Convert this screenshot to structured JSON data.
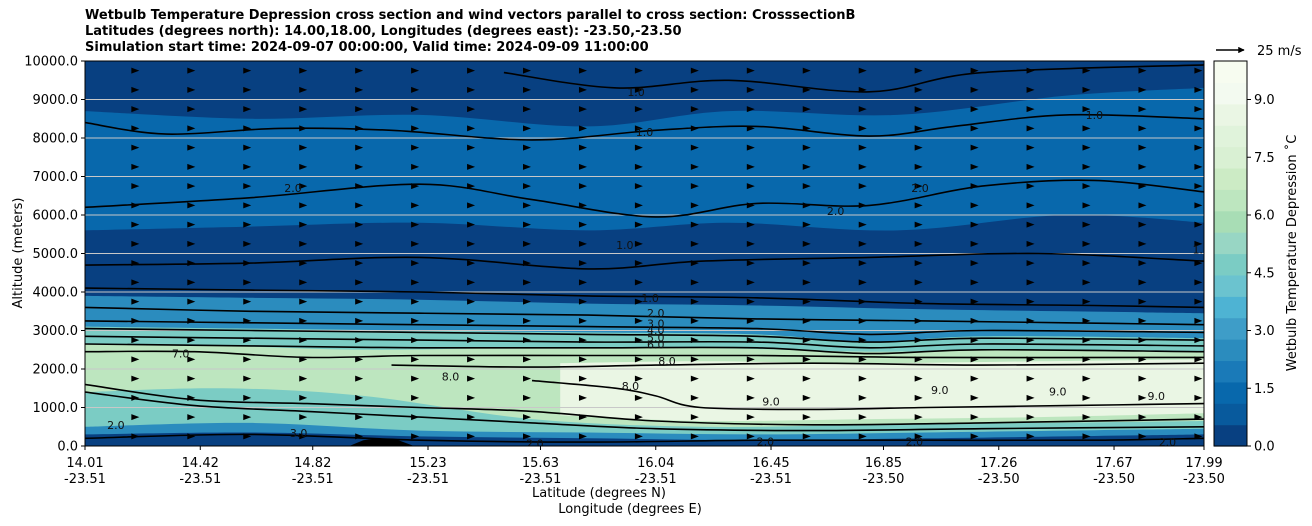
{
  "chart_data": {
    "type": "contourf",
    "title_lines": [
      "Wetbulb Temperature Depression cross section and wind vectors parallel to cross section: CrosssectionB",
      "Latitudes (degrees north): 14.00,18.00, Longitudes (degrees east): -23.50,-23.50",
      "Simulation start time: 2024-09-07 00:00:00, Valid time: 2024-09-09 11:00:00"
    ],
    "ylabel": "Altitude (meters)",
    "xlabel_lat": "Latitude (degrees N)",
    "xlabel_lon": "Longitude (degrees E)",
    "ylim": [
      0,
      10000
    ],
    "yticks": [
      "0.0",
      "1000.0",
      "2000.0",
      "3000.0",
      "4000.0",
      "5000.0",
      "6000.0",
      "7000.0",
      "8000.0",
      "9000.0",
      "10000.0"
    ],
    "ytick_values": [
      0,
      1000,
      2000,
      3000,
      4000,
      5000,
      6000,
      7000,
      8000,
      9000,
      10000
    ],
    "xticks_lat": [
      "14.01",
      "14.42",
      "14.82",
      "15.23",
      "15.63",
      "16.04",
      "16.45",
      "16.85",
      "17.26",
      "17.67",
      "17.99"
    ],
    "xticks_lon": [
      "-23.51",
      "-23.51",
      "-23.51",
      "-23.51",
      "-23.51",
      "-23.51",
      "-23.51",
      "-23.50",
      "-23.50",
      "-23.50",
      "-23.50"
    ],
    "xtick_lat_values": [
      14.01,
      14.42,
      14.82,
      15.23,
      15.63,
      16.04,
      16.45,
      16.85,
      17.26,
      17.67,
      17.99
    ],
    "xlim_lat": [
      14.01,
      17.99
    ],
    "grid": "horizontal",
    "colorbar": {
      "label": "Wetbulb Temperature Depression $^\\circ$C",
      "label_text": "Wetbulb Temperature Depression ˚C",
      "range": [
        0,
        10
      ],
      "ticks": [
        "0.0",
        "1.5",
        "3.0",
        "4.5",
        "6.0",
        "7.5",
        "9.0"
      ],
      "tick_values": [
        0,
        1.5,
        3.0,
        4.5,
        6.0,
        7.5,
        9.0
      ],
      "colors": [
        "#084081",
        "#085a9d",
        "#0868ac",
        "#1a7ab8",
        "#2b8cbe",
        "#3e9dc8",
        "#4eb3d3",
        "#6bc3cf",
        "#7bccc4",
        "#98d6c4",
        "#a8ddb5",
        "#bde6bf",
        "#ccebc5",
        "#d9f0d3",
        "#e0f3db",
        "#eaf6e4",
        "#f3faf0",
        "#f7fcf0"
      ]
    },
    "quiver_key": {
      "label": "25 m/s",
      "value": 25
    },
    "field_layers": [
      {
        "level": 0.5,
        "top": [
          [
            14.01,
            10000
          ],
          [
            17.99,
            10000
          ]
        ],
        "bottom": [
          [
            14.01,
            0
          ],
          [
            17.99,
            0
          ]
        ]
      },
      {
        "level": 1.5,
        "top": [
          [
            14.01,
            8700
          ],
          [
            14.6,
            8500
          ],
          [
            15.2,
            8600
          ],
          [
            15.8,
            8300
          ],
          [
            16.3,
            8700
          ],
          [
            16.9,
            8600
          ],
          [
            17.5,
            9100
          ],
          [
            17.99,
            9300
          ]
        ],
        "bottom": [
          [
            14.01,
            5600
          ],
          [
            14.6,
            5700
          ],
          [
            15.2,
            5800
          ],
          [
            15.8,
            5600
          ],
          [
            16.3,
            5800
          ],
          [
            16.9,
            5600
          ],
          [
            17.5,
            6000
          ],
          [
            17.99,
            5800
          ]
        ]
      },
      {
        "level": 2.5,
        "top": [
          [
            14.01,
            3900
          ],
          [
            14.6,
            3850
          ],
          [
            15.2,
            3800
          ],
          [
            15.8,
            3700
          ],
          [
            16.4,
            3650
          ],
          [
            17.0,
            3550
          ],
          [
            17.5,
            3500
          ],
          [
            17.99,
            3450
          ]
        ],
        "bottom": [
          [
            14.01,
            300
          ],
          [
            14.6,
            350
          ],
          [
            15.2,
            250
          ],
          [
            15.8,
            200
          ],
          [
            16.4,
            150
          ],
          [
            17.0,
            200
          ],
          [
            17.5,
            250
          ],
          [
            17.99,
            300
          ]
        ]
      },
      {
        "level": 4.5,
        "top": [
          [
            14.01,
            3100
          ],
          [
            14.6,
            3050
          ],
          [
            15.2,
            3000
          ],
          [
            15.8,
            2950
          ],
          [
            16.4,
            2900
          ],
          [
            16.8,
            2700
          ],
          [
            17.2,
            2850
          ],
          [
            17.99,
            2800
          ]
        ],
        "bottom": [
          [
            14.01,
            500
          ],
          [
            14.6,
            600
          ],
          [
            15.2,
            400
          ],
          [
            15.8,
            350
          ],
          [
            16.4,
            300
          ],
          [
            17.0,
            350
          ],
          [
            17.5,
            400
          ],
          [
            17.99,
            450
          ]
        ]
      },
      {
        "level": 6.5,
        "top": [
          [
            14.01,
            2650
          ],
          [
            14.5,
            2600
          ],
          [
            15.0,
            2500
          ],
          [
            15.6,
            2550
          ],
          [
            16.2,
            2550
          ],
          [
            16.8,
            2450
          ],
          [
            17.3,
            2500
          ],
          [
            17.99,
            2450
          ]
        ],
        "bottom": [
          [
            14.01,
            1400
          ],
          [
            14.5,
            1500
          ],
          [
            15.0,
            1300
          ],
          [
            15.6,
            700
          ],
          [
            16.2,
            500
          ],
          [
            16.8,
            550
          ],
          [
            17.4,
            600
          ],
          [
            17.99,
            650
          ]
        ]
      },
      {
        "level": 8.5,
        "top": [
          [
            15.7,
            2150
          ],
          [
            16.2,
            2200
          ],
          [
            16.8,
            2150
          ],
          [
            17.4,
            2200
          ],
          [
            17.99,
            2250
          ]
        ],
        "bottom": [
          [
            15.7,
            800
          ],
          [
            16.2,
            650
          ],
          [
            16.8,
            700
          ],
          [
            17.4,
            750
          ],
          [
            17.99,
            850
          ]
        ]
      }
    ],
    "contour_lines": [
      {
        "level": 1.0,
        "points": [
          [
            14.01,
            8400
          ],
          [
            14.3,
            8100
          ],
          [
            14.7,
            8250
          ],
          [
            15.1,
            8200
          ],
          [
            15.6,
            7950
          ],
          [
            16.04,
            8200
          ],
          [
            16.4,
            8300
          ],
          [
            16.8,
            8050
          ],
          [
            17.1,
            8300
          ],
          [
            17.5,
            8600
          ],
          [
            17.99,
            8500
          ]
        ]
      },
      {
        "level": 1.0,
        "points": [
          [
            15.5,
            9700
          ],
          [
            15.9,
            9300
          ],
          [
            16.3,
            9500
          ],
          [
            16.8,
            9200
          ],
          [
            17.2,
            9700
          ],
          [
            17.99,
            9900
          ]
        ]
      },
      {
        "level": 1.0,
        "points": [
          [
            14.01,
            4700
          ],
          [
            14.6,
            4750
          ],
          [
            15.2,
            4900
          ],
          [
            15.8,
            4600
          ],
          [
            16.2,
            4800
          ],
          [
            16.8,
            4900
          ],
          [
            17.4,
            5000
          ],
          [
            17.99,
            4800
          ]
        ]
      },
      {
        "level": 1.0,
        "points": [
          [
            14.01,
            4100
          ],
          [
            14.6,
            4050
          ],
          [
            15.2,
            4000
          ],
          [
            15.8,
            3900
          ],
          [
            16.4,
            3850
          ],
          [
            17.0,
            3700
          ],
          [
            17.6,
            3650
          ],
          [
            17.99,
            3600
          ]
        ]
      },
      {
        "level": 2.0,
        "points": [
          [
            14.01,
            6200
          ],
          [
            14.6,
            6450
          ],
          [
            15.2,
            6800
          ],
          [
            15.6,
            6400
          ],
          [
            16.04,
            5950
          ],
          [
            16.4,
            6300
          ],
          [
            16.8,
            6250
          ],
          [
            17.2,
            6750
          ],
          [
            17.6,
            6900
          ],
          [
            17.99,
            6600
          ]
        ]
      },
      {
        "level": 2.0,
        "points": [
          [
            14.01,
            3600
          ],
          [
            14.6,
            3500
          ],
          [
            15.2,
            3450
          ],
          [
            15.8,
            3400
          ],
          [
            16.4,
            3300
          ],
          [
            17.0,
            3250
          ],
          [
            17.5,
            3200
          ],
          [
            17.99,
            3150
          ]
        ]
      },
      {
        "level": 3.0,
        "points": [
          [
            14.01,
            3250
          ],
          [
            14.6,
            3200
          ],
          [
            15.2,
            3150
          ],
          [
            15.8,
            3100
          ],
          [
            16.4,
            3050
          ],
          [
            16.8,
            2900
          ],
          [
            17.2,
            3000
          ],
          [
            17.99,
            2950
          ]
        ]
      },
      {
        "level": 4.0,
        "points": [
          [
            14.01,
            3050
          ],
          [
            14.6,
            3000
          ],
          [
            15.2,
            2950
          ],
          [
            15.8,
            2900
          ],
          [
            16.4,
            2850
          ],
          [
            16.8,
            2700
          ],
          [
            17.2,
            2800
          ],
          [
            17.99,
            2750
          ]
        ]
      },
      {
        "level": 5.0,
        "points": [
          [
            14.01,
            2850
          ],
          [
            14.6,
            2800
          ],
          [
            15.2,
            2750
          ],
          [
            15.8,
            2700
          ],
          [
            16.4,
            2700
          ],
          [
            16.8,
            2550
          ],
          [
            17.2,
            2650
          ],
          [
            17.99,
            2600
          ]
        ]
      },
      {
        "level": 6.0,
        "points": [
          [
            14.01,
            2650
          ],
          [
            14.6,
            2600
          ],
          [
            15.2,
            2550
          ],
          [
            15.8,
            2550
          ],
          [
            16.4,
            2550
          ],
          [
            16.8,
            2400
          ],
          [
            17.2,
            2500
          ],
          [
            17.99,
            2450
          ]
        ]
      },
      {
        "level": 7.0,
        "points": [
          [
            14.01,
            2450
          ],
          [
            14.4,
            2450
          ],
          [
            14.8,
            2300
          ],
          [
            15.2,
            2350
          ],
          [
            15.8,
            2350
          ],
          [
            16.4,
            2350
          ],
          [
            17.0,
            2300
          ],
          [
            17.99,
            2300
          ]
        ]
      },
      {
        "level": 8.0,
        "points": [
          [
            15.1,
            2100
          ],
          [
            15.6,
            2050
          ],
          [
            16.04,
            2100
          ],
          [
            16.6,
            2150
          ],
          [
            17.2,
            2100
          ],
          [
            17.99,
            2150
          ]
        ]
      },
      {
        "level": 8.0,
        "points": [
          [
            15.6,
            1700
          ],
          [
            15.9,
            1500
          ],
          [
            16.04,
            1300
          ],
          [
            16.2,
            1000
          ],
          [
            16.6,
            950
          ],
          [
            17.0,
            1000
          ],
          [
            17.5,
            1050
          ],
          [
            17.99,
            1100
          ]
        ]
      },
      {
        "level": 2.0,
        "points": [
          [
            14.01,
            1600
          ],
          [
            14.4,
            1200
          ],
          [
            14.8,
            1100
          ],
          [
            15.2,
            1000
          ],
          [
            15.6,
            900
          ],
          [
            16.04,
            650
          ],
          [
            16.6,
            550
          ],
          [
            17.2,
            600
          ],
          [
            17.99,
            700
          ]
        ]
      },
      {
        "level": 3.0,
        "points": [
          [
            14.01,
            1400
          ],
          [
            14.4,
            1050
          ],
          [
            14.8,
            900
          ],
          [
            15.2,
            750
          ],
          [
            15.6,
            600
          ],
          [
            16.04,
            450
          ],
          [
            16.6,
            400
          ],
          [
            17.2,
            450
          ],
          [
            17.99,
            500
          ]
        ]
      },
      {
        "level": 2.0,
        "points": [
          [
            14.01,
            200
          ],
          [
            14.6,
            300
          ],
          [
            15.2,
            150
          ],
          [
            15.8,
            100
          ],
          [
            16.4,
            150
          ],
          [
            17.0,
            150
          ],
          [
            17.6,
            150
          ],
          [
            17.99,
            200
          ]
        ]
      }
    ],
    "contour_labels": [
      {
        "text": "1.0",
        "x": 15.97,
        "y": 9200
      },
      {
        "text": "1.0",
        "x": 16.0,
        "y": 8150
      },
      {
        "text": "1.0",
        "x": 17.6,
        "y": 8600
      },
      {
        "text": "1.0",
        "x": 15.93,
        "y": 5220
      },
      {
        "text": "1.0",
        "x": 17.98,
        "y": 5100
      },
      {
        "text": "1.0",
        "x": 16.02,
        "y": 3850
      },
      {
        "text": "2.0",
        "x": 14.75,
        "y": 6700
      },
      {
        "text": "2.0",
        "x": 16.68,
        "y": 6100
      },
      {
        "text": "2.0",
        "x": 16.98,
        "y": 6700
      },
      {
        "text": "2.0",
        "x": 16.04,
        "y": 3450
      },
      {
        "text": "3.0",
        "x": 16.04,
        "y": 3180
      },
      {
        "text": "4.0",
        "x": 16.04,
        "y": 3010
      },
      {
        "text": "5.0",
        "x": 16.04,
        "y": 2820
      },
      {
        "text": "6.0",
        "x": 16.04,
        "y": 2640
      },
      {
        "text": "7.0",
        "x": 14.35,
        "y": 2400
      },
      {
        "text": "8.0",
        "x": 16.08,
        "y": 2210
      },
      {
        "text": "8.0",
        "x": 15.31,
        "y": 1810
      },
      {
        "text": "8.0",
        "x": 15.95,
        "y": 1560
      },
      {
        "text": "9.0",
        "x": 16.45,
        "y": 1150
      },
      {
        "text": "9.0",
        "x": 17.05,
        "y": 1450
      },
      {
        "text": "9.0",
        "x": 17.47,
        "y": 1420
      },
      {
        "text": "9.0",
        "x": 17.82,
        "y": 1300
      },
      {
        "text": "2.0",
        "x": 14.12,
        "y": 550
      },
      {
        "text": "3.0",
        "x": 14.77,
        "y": 340
      },
      {
        "text": "2.0",
        "x": 15.61,
        "y": 60
      },
      {
        "text": "2.0",
        "x": 16.43,
        "y": 120
      },
      {
        "text": "2.0",
        "x": 16.96,
        "y": 120
      },
      {
        "text": "2.0",
        "x": 17.86,
        "y": 100
      }
    ],
    "terrain": [
      [
        14.95,
        0
      ],
      [
        15.0,
        150
      ],
      [
        15.05,
        200
      ],
      [
        15.12,
        160
      ],
      [
        15.18,
        0
      ]
    ]
  }
}
